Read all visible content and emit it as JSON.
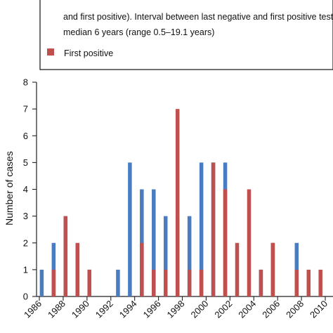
{
  "colors": {
    "blue": "#4a7cc2",
    "red": "#c0504d",
    "axis": "#222222",
    "frame": "#222222"
  },
  "legend": {
    "text_lines": [
      "and first positive). Interval between last negative and first positive test",
      "median 6 years (range 0.5–19.1 years)"
    ],
    "red_label": "First positive"
  },
  "chart_data": {
    "type": "bar",
    "ylabel": "Number of cases",
    "xlabel": "",
    "ylim": [
      0,
      8
    ],
    "yticks": [
      0,
      1,
      2,
      3,
      4,
      5,
      6,
      7,
      8
    ],
    "xlim": [
      1986,
      2010.7
    ],
    "xticks": [
      1986,
      1988,
      1990,
      1992,
      1994,
      1996,
      1998,
      2000,
      2002,
      2004,
      2006,
      2008,
      2010
    ],
    "series": [
      {
        "color": "blue",
        "x": [
          1986.2,
          1987.2,
          1988.2,
          1989.2,
          1990.2,
          1992.6,
          1993.6,
          1994.6,
          1995.6,
          1996.6,
          1997.6,
          1998.6,
          1999.6,
          2000.6,
          2001.6,
          2004.6,
          2005.6,
          2007.6
        ],
        "values": [
          1,
          2,
          3,
          1,
          1,
          1,
          5,
          4,
          4,
          3,
          3,
          3,
          5,
          5,
          5,
          1,
          2,
          2
        ]
      },
      {
        "color": "red",
        "x": [
          1987.2,
          1988.2,
          1989.2,
          1990.2,
          1994.6,
          1995.6,
          1996.6,
          1997.6,
          1998.6,
          1999.6,
          2000.6,
          2001.6,
          2002.6,
          2003.6,
          2004.6,
          2005.6,
          2007.6,
          2008.6,
          2009.6
        ],
        "values": [
          1,
          3,
          2,
          1,
          2,
          1,
          1,
          7,
          1,
          1,
          5,
          4,
          2,
          4,
          1,
          2,
          1,
          1,
          1
        ]
      }
    ]
  }
}
